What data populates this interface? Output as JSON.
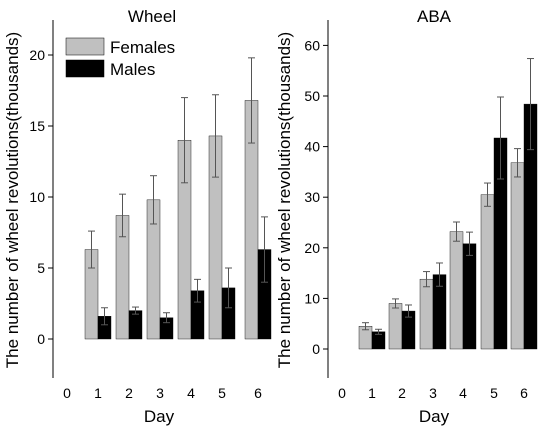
{
  "chart_data": [
    {
      "type": "bar",
      "title": "Wheel",
      "xlabel": "Day",
      "ylabel": "The number of wheel revolutions(thousands)",
      "x_ticks": [
        "0",
        "1",
        "2",
        "3",
        "4",
        "5",
        "6"
      ],
      "categories": [
        "1",
        "2",
        "3",
        "4",
        "5",
        "6"
      ],
      "ylim": [
        -2.5,
        22.5
      ],
      "y_ticks": [
        0,
        5,
        10,
        15,
        20
      ],
      "legend": "top-left",
      "grid": false,
      "series": [
        {
          "name": "Females",
          "color": "#c0c0c0",
          "values": [
            6.3,
            8.7,
            9.8,
            14.0,
            14.3,
            16.8
          ],
          "errors": [
            1.3,
            1.5,
            1.7,
            3.0,
            2.9,
            3.0
          ]
        },
        {
          "name": "Males",
          "color": "#000000",
          "values": [
            1.6,
            2.0,
            1.5,
            3.4,
            3.6,
            6.3
          ],
          "errors": [
            0.6,
            0.25,
            0.35,
            0.8,
            1.4,
            2.3
          ]
        }
      ]
    },
    {
      "type": "bar",
      "title": "ABA",
      "xlabel": "Day",
      "ylabel": "The number of wheel revolutions(thousands)",
      "x_ticks": [
        "0",
        "1",
        "2",
        "3",
        "4",
        "5",
        "6"
      ],
      "categories": [
        "1",
        "2",
        "3",
        "4",
        "5",
        "6"
      ],
      "ylim": [
        -6,
        66
      ],
      "y_ticks": [
        0,
        10,
        20,
        30,
        40,
        50,
        60
      ],
      "grid": false,
      "series": [
        {
          "name": "Females",
          "color": "#c0c0c0",
          "values": [
            4.5,
            9.0,
            13.8,
            23.2,
            30.5,
            36.8
          ],
          "errors": [
            0.7,
            0.9,
            1.5,
            1.9,
            2.3,
            2.8
          ]
        },
        {
          "name": "Males",
          "color": "#000000",
          "values": [
            3.4,
            7.5,
            14.7,
            20.8,
            41.7,
            48.4
          ],
          "errors": [
            0.5,
            1.2,
            2.3,
            2.3,
            8.1,
            9.0
          ]
        }
      ]
    }
  ]
}
